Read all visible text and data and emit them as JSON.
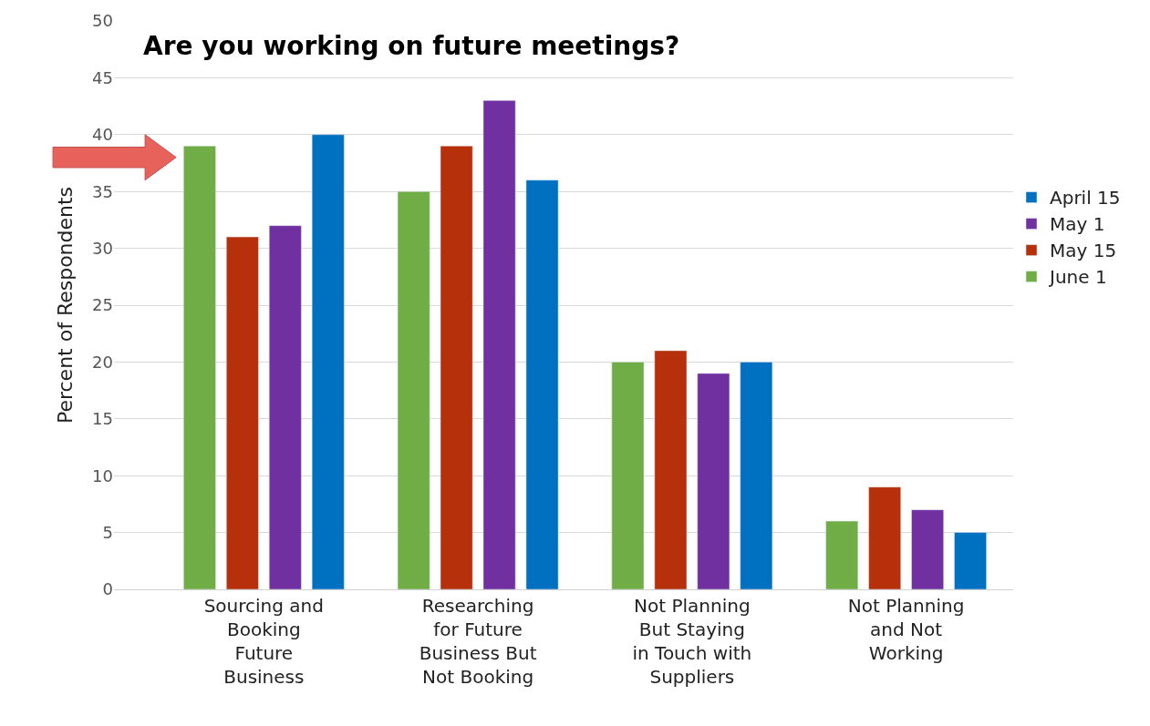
{
  "chart_data": {
    "type": "bar",
    "title": "Are you working on future meetings?",
    "ylabel": "Percent of Respondents",
    "categories": [
      "Sourcing and Booking Future Business",
      "Researching for Future Business But Not Booking",
      "Not Planning But Staying in Touch with Suppliers",
      "Not Planning and Not Working"
    ],
    "series": [
      {
        "name": "June 1",
        "color": "#70ad47",
        "values": [
          39,
          35,
          20,
          6
        ]
      },
      {
        "name": "May 15",
        "color": "#b5300b",
        "values": [
          31,
          39,
          21,
          9
        ]
      },
      {
        "name": "May 1",
        "color": "#7030a0",
        "values": [
          32,
          43,
          19,
          7
        ]
      },
      {
        "name": "April 15",
        "color": "#0070c0",
        "values": [
          40,
          36,
          20,
          5
        ]
      }
    ],
    "ylim": [
      0,
      50
    ],
    "yticks": [
      0,
      5,
      10,
      15,
      20,
      25,
      30,
      35,
      40,
      45,
      50
    ],
    "grid": "y",
    "legend": "right"
  }
}
